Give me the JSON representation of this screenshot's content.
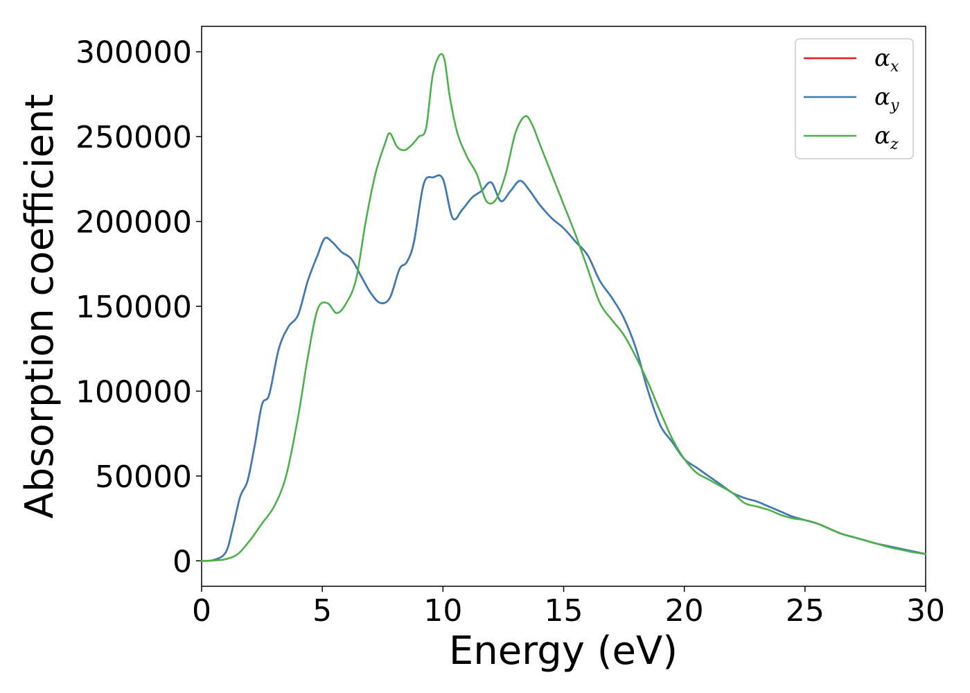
{
  "chart_data": {
    "type": "line",
    "xlabel": "Energy (eV)",
    "ylabel": "Absorption coefficient",
    "xlim": [
      0,
      30
    ],
    "ylim": [
      -15000,
      315000
    ],
    "xticks": [
      0,
      5,
      10,
      15,
      20,
      25,
      30
    ],
    "yticks": [
      0,
      50000,
      100000,
      150000,
      200000,
      250000,
      300000
    ],
    "grid": false,
    "legend_position": "top-right",
    "series": [
      {
        "name": "α",
        "subscript": "x",
        "color": "#e41a1c",
        "x": [
          0,
          0.5,
          1.0,
          1.3,
          1.6,
          1.9,
          2.2,
          2.5,
          2.8,
          3.2,
          3.6,
          4.0,
          4.4,
          4.8,
          5.1,
          5.4,
          5.8,
          6.2,
          6.6,
          7.0,
          7.4,
          7.8,
          8.2,
          8.5,
          8.8,
          9.2,
          9.6,
          10.0,
          10.4,
          10.8,
          11.2,
          11.6,
          12.0,
          12.4,
          12.8,
          13.2,
          13.6,
          14.0,
          14.5,
          15.0,
          15.5,
          16.0,
          16.5,
          17.0,
          17.5,
          18.0,
          18.5,
          19.0,
          19.5,
          20.0,
          20.5,
          21.0,
          21.5,
          22.0,
          22.5,
          23.0,
          23.5,
          24.0,
          24.5,
          25.0,
          25.5,
          26.0,
          26.5,
          27.0,
          27.5,
          28.0,
          28.5,
          29.0,
          29.5,
          30.0
        ],
        "y": [
          0,
          500,
          5000,
          20000,
          38000,
          47000,
          68000,
          92000,
          98000,
          125000,
          138000,
          145000,
          165000,
          180000,
          190000,
          188000,
          182000,
          178000,
          168000,
          158000,
          152000,
          155000,
          172000,
          176000,
          188000,
          222000,
          226000,
          225000,
          202000,
          207000,
          214000,
          218000,
          223000,
          212000,
          218000,
          224000,
          218000,
          210000,
          202000,
          196000,
          188000,
          180000,
          165000,
          155000,
          143000,
          125000,
          100000,
          80000,
          70000,
          60000,
          55000,
          50000,
          45000,
          40000,
          37000,
          35000,
          32000,
          29000,
          26000,
          24000,
          22000,
          19000,
          16000,
          14000,
          12000,
          10000,
          8500,
          7000,
          5500,
          4000
        ]
      },
      {
        "name": "α",
        "subscript": "y",
        "color": "#377eb8",
        "x": [
          0,
          0.5,
          1.0,
          1.3,
          1.6,
          1.9,
          2.2,
          2.5,
          2.8,
          3.2,
          3.6,
          4.0,
          4.4,
          4.8,
          5.1,
          5.4,
          5.8,
          6.2,
          6.6,
          7.0,
          7.4,
          7.8,
          8.2,
          8.5,
          8.8,
          9.2,
          9.6,
          10.0,
          10.4,
          10.8,
          11.2,
          11.6,
          12.0,
          12.4,
          12.8,
          13.2,
          13.6,
          14.0,
          14.5,
          15.0,
          15.5,
          16.0,
          16.5,
          17.0,
          17.5,
          18.0,
          18.5,
          19.0,
          19.5,
          20.0,
          20.5,
          21.0,
          21.5,
          22.0,
          22.5,
          23.0,
          23.5,
          24.0,
          24.5,
          25.0,
          25.5,
          26.0,
          26.5,
          27.0,
          27.5,
          28.0,
          28.5,
          29.0,
          29.5,
          30.0
        ],
        "y": [
          0,
          500,
          5000,
          20000,
          38000,
          47000,
          68000,
          92000,
          98000,
          125000,
          138000,
          145000,
          165000,
          180000,
          190000,
          188000,
          182000,
          178000,
          168000,
          158000,
          152000,
          155000,
          172000,
          176000,
          188000,
          222000,
          226000,
          225000,
          202000,
          207000,
          214000,
          218000,
          223000,
          212000,
          218000,
          224000,
          218000,
          210000,
          202000,
          196000,
          188000,
          180000,
          165000,
          155000,
          143000,
          125000,
          100000,
          80000,
          70000,
          60000,
          55000,
          50000,
          45000,
          40000,
          37000,
          35000,
          32000,
          29000,
          26000,
          24000,
          22000,
          19000,
          16000,
          14000,
          12000,
          10000,
          8500,
          7000,
          5500,
          4000
        ]
      },
      {
        "name": "α",
        "subscript": "z",
        "color": "#4daf4a",
        "x": [
          0,
          0.5,
          1.0,
          1.5,
          2.0,
          2.5,
          3.0,
          3.5,
          4.0,
          4.4,
          4.8,
          5.2,
          5.6,
          6.0,
          6.4,
          6.8,
          7.2,
          7.6,
          7.8,
          8.1,
          8.4,
          8.7,
          9.0,
          9.3,
          9.6,
          10.0,
          10.3,
          10.6,
          11.0,
          11.4,
          11.8,
          12.2,
          12.6,
          13.0,
          13.4,
          13.7,
          14.0,
          14.5,
          15.0,
          15.5,
          16.0,
          16.5,
          17.0,
          17.5,
          18.0,
          18.5,
          19.0,
          19.5,
          20.0,
          20.5,
          21.0,
          21.5,
          22.0,
          22.5,
          23.0,
          23.5,
          24.0,
          24.5,
          25.0,
          25.5,
          26.0,
          26.5,
          27.0,
          27.5,
          28.0,
          28.5,
          29.0,
          29.5,
          30.0
        ],
        "y": [
          0,
          200,
          1000,
          4000,
          12000,
          22000,
          32000,
          50000,
          85000,
          120000,
          148000,
          152000,
          146000,
          152000,
          166000,
          200000,
          228000,
          246000,
          252000,
          244000,
          242000,
          245000,
          250000,
          255000,
          288000,
          298000,
          272000,
          252000,
          238000,
          228000,
          212000,
          213000,
          228000,
          252000,
          262000,
          257000,
          246000,
          228000,
          210000,
          192000,
          172000,
          152000,
          142000,
          133000,
          120000,
          105000,
          88000,
          72000,
          60000,
          52000,
          48000,
          44000,
          40000,
          34000,
          32000,
          30000,
          27000,
          25000,
          24000,
          22000,
          19000,
          16000,
          14000,
          12000,
          10000,
          8000,
          6500,
          5000,
          4000
        ]
      }
    ]
  }
}
